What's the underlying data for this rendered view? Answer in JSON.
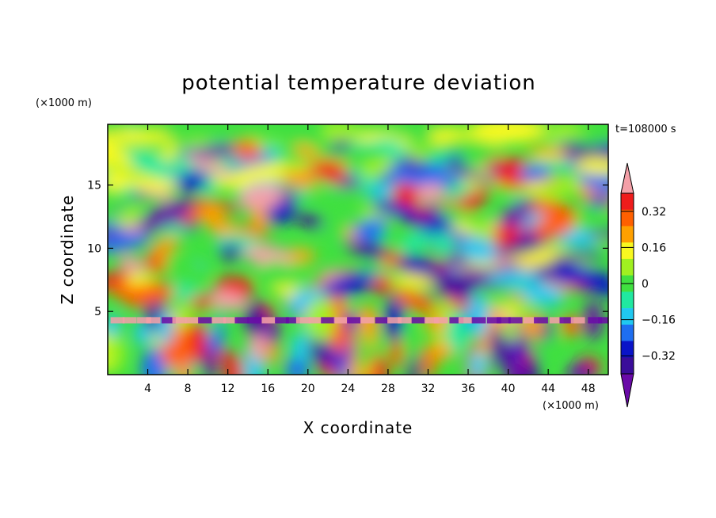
{
  "chart_data": {
    "type": "heatmap",
    "title": "potential temperature deviation",
    "xlabel": "X coordinate",
    "ylabel": "Z coordinate",
    "x_unit": "(×1000 m)",
    "y_unit": "(×1000 m)",
    "time_label": "t=108000 s",
    "xlim": [
      0,
      50
    ],
    "ylim": [
      0,
      19.8
    ],
    "x_ticks": [
      4,
      8,
      12,
      16,
      20,
      24,
      28,
      32,
      36,
      40,
      44,
      48
    ],
    "y_ticks": [
      5,
      10,
      15
    ],
    "colorbar": {
      "levels": [
        -0.48,
        -0.4,
        -0.32,
        -0.24,
        -0.16,
        -0.08,
        0,
        0.08,
        0.16,
        0.24,
        0.32,
        0.4,
        0.48
      ],
      "colors": [
        "#6a0aa8",
        "#3a0d9a",
        "#0a14c8",
        "#1e6ef0",
        "#20c8f0",
        "#20e8a0",
        "#40e040",
        "#a0f020",
        "#f8f820",
        "#ffa000",
        "#ff6000",
        "#ee1c1c",
        "#f4a0a8"
      ],
      "tick_labels": [
        "0.32",
        "0.16",
        "0",
        "−0.16",
        "−0.32"
      ],
      "tick_values": [
        0.32,
        0.16,
        0,
        -0.16,
        -0.32
      ],
      "extend": "both"
    }
  }
}
